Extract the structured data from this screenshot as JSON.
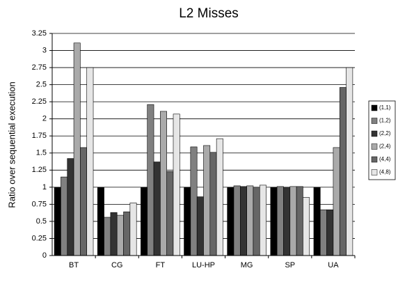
{
  "chart_data": {
    "type": "bar",
    "title": "L2 Misses",
    "y_label": "Ratio over sequential execution",
    "categories": [
      "BT",
      "CG",
      "FT",
      "LU-HP",
      "MG",
      "SP",
      "UA"
    ],
    "series": [
      {
        "name": "(1,1)",
        "color": "#000000",
        "values": [
          1,
          1,
          1,
          1,
          1,
          1,
          1
        ]
      },
      {
        "name": "(1,2)",
        "color": "#808080",
        "values": [
          1.15,
          0.56,
          2.21,
          1.59,
          1.02,
          1.01,
          0.67
        ]
      },
      {
        "name": "(2,2)",
        "color": "#333333",
        "values": [
          1.42,
          0.63,
          1.37,
          0.86,
          1.01,
          1.0,
          0.67
        ]
      },
      {
        "name": "(2,4)",
        "color": "#aaaaaa",
        "values": [
          3.11,
          0.59,
          2.11,
          1.61,
          1.02,
          1.01,
          1.58
        ]
      },
      {
        "name": "(4,4)",
        "color": "#666666",
        "values": [
          1.58,
          0.64,
          1.23,
          1.51,
          1.0,
          1.01,
          2.46
        ]
      },
      {
        "name": "(4,8)",
        "color": "#e6e6e6",
        "values": [
          2.75,
          0.77,
          2.07,
          1.71,
          1.03,
          0.85,
          2.75
        ]
      }
    ],
    "ylim": [
      0,
      3.25
    ],
    "yticks": [
      0,
      0.25,
      0.5,
      0.75,
      1,
      1.25,
      1.5,
      1.75,
      2,
      2.25,
      2.5,
      2.75,
      3,
      3.25
    ],
    "grid": true,
    "legend": "right"
  }
}
